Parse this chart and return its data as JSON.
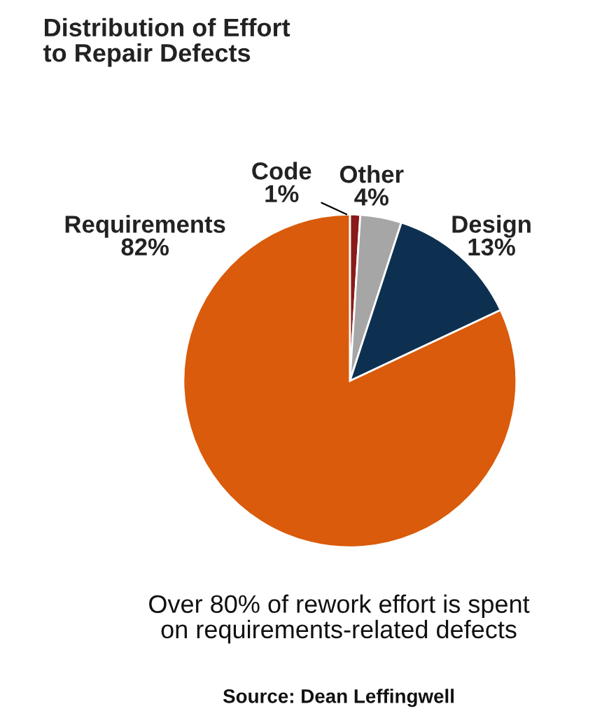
{
  "chart_data": {
    "type": "pie",
    "title": "Distribution of Effort\nto Repair Defects",
    "categories": [
      "Code",
      "Other",
      "Design",
      "Requirements"
    ],
    "values": [
      1,
      4,
      13,
      82
    ],
    "colors": [
      "#8b1a1a",
      "#a6a6a6",
      "#0e3050",
      "#d95b0b"
    ],
    "value_labels": [
      "1%",
      "4%",
      "13%",
      "82%"
    ],
    "annotations": [
      "Over 80% of rework effort is spent\non requirements-related defects",
      "Source: Dean Leffingwell"
    ]
  }
}
